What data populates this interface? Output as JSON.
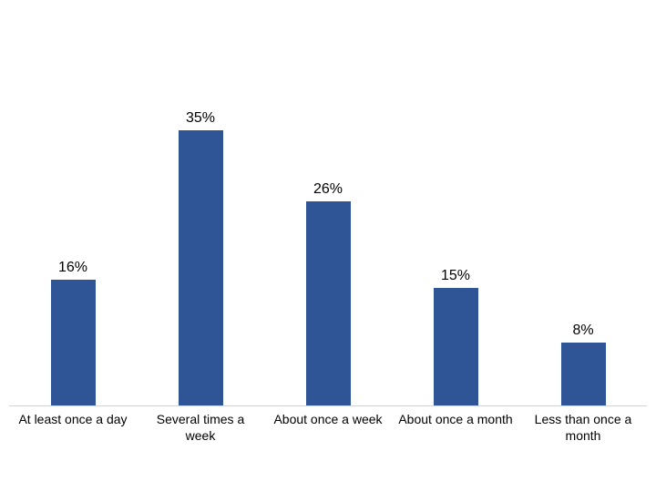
{
  "chart_data": {
    "type": "bar",
    "title": "",
    "xlabel": "",
    "ylabel": "",
    "categories": [
      "At least once a day",
      "Several times a week",
      "About once a week",
      "About once a month",
      "Less than once a month"
    ],
    "values": [
      16,
      35,
      26,
      15,
      8
    ],
    "value_labels": [
      "16%",
      "35%",
      "26%",
      "15%",
      "8%"
    ],
    "ylim": [
      0,
      35
    ],
    "grid": false,
    "legend": false,
    "colors": {
      "bar": "#2f5596",
      "axis_line": "#d3d3d3",
      "text": "#000000",
      "background": "#ffffff"
    }
  }
}
